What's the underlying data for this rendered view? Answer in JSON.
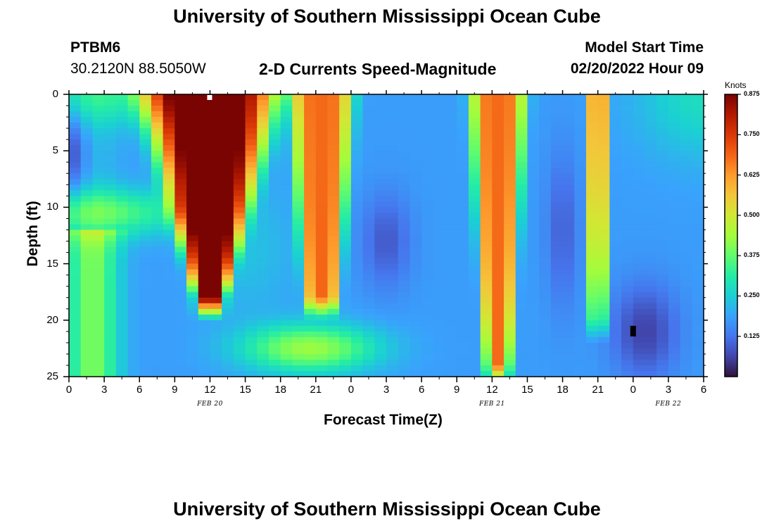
{
  "page": {
    "title_top": "University of Southern Mississippi Ocean Cube",
    "title_bottom": "University of Southern Mississippi Ocean Cube",
    "station_id": "PTBM6",
    "station_coords": "30.2120N  88.5050W",
    "chart_title": "2-D Currents Speed-Magnitude",
    "model_start_label": "Model Start Time",
    "model_start_value": "02/20/2022 Hour 09"
  },
  "chart_data": {
    "type": "heatmap",
    "title": "2-D Currents Speed-Magnitude",
    "xlabel": "Forecast Time(Z)",
    "ylabel": "Depth (ft)",
    "x_tick_labels": [
      "0",
      "3",
      "6",
      "9",
      "12",
      "15",
      "18",
      "21",
      "0",
      "3",
      "6",
      "9",
      "12",
      "15",
      "18",
      "21",
      "0",
      "3",
      "6"
    ],
    "x_range_hours": [
      0,
      54
    ],
    "y_tick_labels": [
      "0",
      "5",
      "10",
      "15",
      "20",
      "25"
    ],
    "y_range_ft": [
      0,
      25
    ],
    "date_labels": [
      {
        "text": "FEB 20",
        "hour": 12
      },
      {
        "text": "FEB 21",
        "hour": 36
      },
      {
        "text": "FEB 22",
        "hour": 51
      }
    ],
    "colorbar": {
      "unit": "Knots",
      "min": 0.0,
      "max": 0.875,
      "tick_labels": [
        "0.875",
        "0.750",
        "0.625",
        "0.500",
        "0.375",
        "0.250",
        "0.125"
      ],
      "tick_values": [
        0.875,
        0.75,
        0.625,
        0.5,
        0.375,
        0.25,
        0.125
      ],
      "colormap": [
        "#30123b",
        "#4145ab",
        "#4675ed",
        "#39a2fc",
        "#1bcfd4",
        "#24eca6",
        "#61fc6c",
        "#a4fc3b",
        "#d1e834",
        "#f3c63a",
        "#fe9b2d",
        "#f36315",
        "#d93806",
        "#b11901",
        "#7a0402"
      ]
    },
    "speed_field_summary": {
      "grid_hours_step": 1,
      "grid_depth_step_ft": 0.5,
      "features": [
        {
          "hour": 12,
          "depth_top_ft": 0,
          "depth_bottom_ft": 19,
          "peak_knots": 0.87
        },
        {
          "hour": 21.5,
          "depth_top_ft": 0,
          "depth_bottom_ft": 19,
          "peak_knots": 0.65
        },
        {
          "hour": 36.5,
          "depth_top_ft": 0,
          "depth_bottom_ft": 24,
          "peak_knots": 0.68
        },
        {
          "hour": 45,
          "depth_top_ft": 0,
          "depth_bottom_ft": 20,
          "peak_knots": 0.62
        },
        {
          "hour": 0,
          "depth_top_ft": 0,
          "depth_bottom_ft": 25,
          "peak_knots": 0.42,
          "note": "surface band"
        },
        {
          "hour": 49,
          "depth": 21,
          "min_knots": 0.02,
          "note": "minimum"
        }
      ]
    }
  }
}
